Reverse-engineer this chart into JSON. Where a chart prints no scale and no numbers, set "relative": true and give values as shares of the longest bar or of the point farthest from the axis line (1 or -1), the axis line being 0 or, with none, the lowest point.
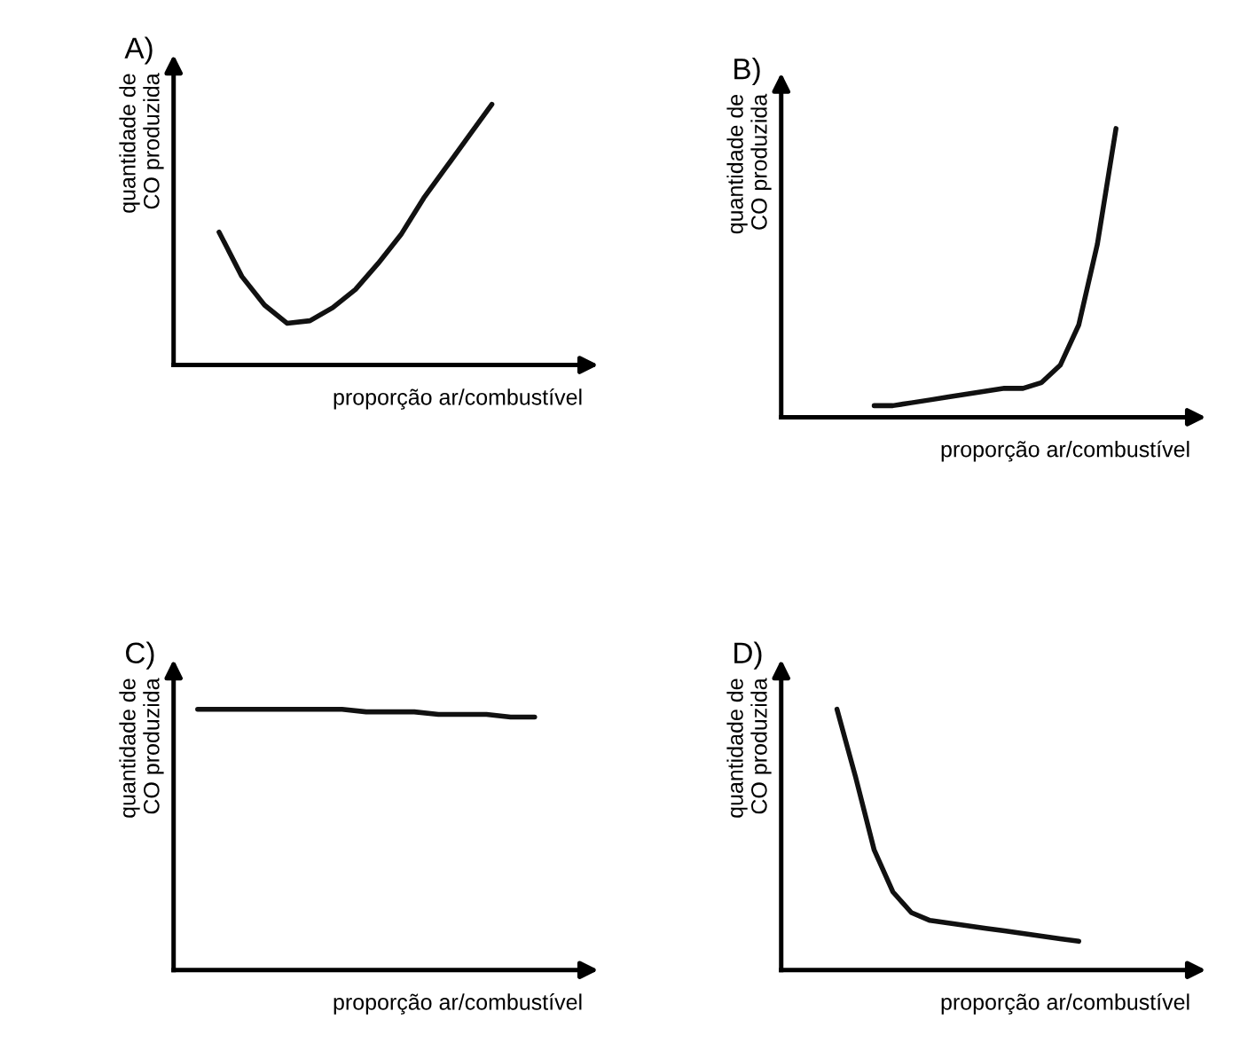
{
  "chart_data": [
    {
      "type": "line",
      "title": "A)",
      "xlabel": "proporção ar/combustível",
      "ylabel": "quantidade de\nCO produzida",
      "relative": true,
      "color": "#111111",
      "categories": [
        null,
        null,
        null,
        null,
        null,
        null,
        null,
        null,
        null,
        null,
        null,
        null,
        null,
        null,
        null,
        null
      ],
      "values": [
        null,
        0.51,
        0.34,
        0.23,
        0.16,
        0.17,
        0.22,
        0.29,
        0.39,
        0.5,
        0.64,
        0.76,
        0.88,
        1,
        null,
        null
      ]
    },
    {
      "type": "line",
      "title": "B)",
      "xlabel": "proporção ar/combustível",
      "ylabel": "quantidade de\nCO produzida",
      "relative": true,
      "color": "#111111",
      "categories": [
        null,
        null,
        null,
        null,
        null,
        null,
        null,
        null,
        null,
        null,
        null,
        null,
        null,
        null,
        null,
        null,
        null,
        null,
        null,
        null
      ],
      "values": [
        null,
        null,
        null,
        null,
        0.04,
        0.04,
        0.05,
        0.06,
        0.07,
        0.08,
        0.09,
        0.1,
        0.1,
        0.12,
        0.18,
        0.32,
        0.6,
        1,
        null,
        null
      ]
    },
    {
      "type": "line",
      "title": "C)",
      "xlabel": "proporção ar/combustível",
      "ylabel": "quantidade de\nCO produzida",
      "relative": true,
      "color": "#111111",
      "categories": [
        null,
        null,
        null,
        null,
        null,
        null,
        null,
        null,
        null,
        null,
        null,
        null,
        null,
        null,
        null
      ],
      "values": [
        1,
        1,
        1,
        1,
        1,
        1,
        1,
        0.99,
        0.99,
        0.99,
        0.98,
        0.98,
        0.98,
        0.97,
        0.97
      ]
    },
    {
      "type": "line",
      "title": "D)",
      "xlabel": "proporção ar/combustível",
      "ylabel": "quantidade de\nCO produzida",
      "relative": true,
      "color": "#111111",
      "categories": [
        null,
        null,
        null,
        null,
        null,
        null,
        null,
        null,
        null,
        null,
        null,
        null,
        null,
        null,
        null,
        null,
        null,
        null,
        null,
        null
      ],
      "values": [
        null,
        null,
        1,
        0.74,
        0.46,
        0.3,
        0.22,
        0.19,
        0.18,
        0.17,
        0.16,
        0.15,
        0.14,
        0.13,
        0.12,
        0.11,
        null,
        null,
        null,
        null
      ]
    }
  ]
}
